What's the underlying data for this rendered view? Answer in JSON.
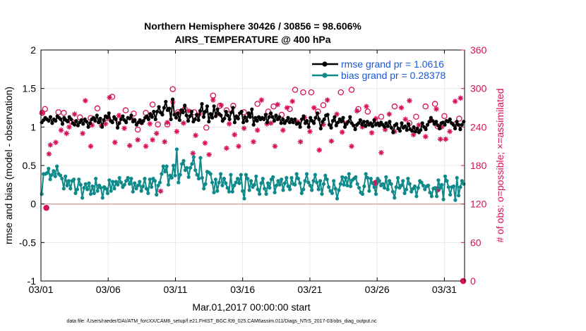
{
  "chart_data": {
    "type": "line",
    "title_line1": "Northern Hemisphere 30426 / 30856 = 98.606%",
    "title_line2": "AIRS_TEMPERATURE @ 400 hPa",
    "xlabel": "Mar.01,2017 00:00:00 start",
    "ylabel": "rmse and bias (model - observation)",
    "y2label": "# of obs: o=possible; ×=assimilated",
    "footnote": "data file: /Users/raeder/DAI/ATM_forcXX/CAM6_setup/f.e21.FHIST_BGC.f09_025.CAM6assim.011/Diags_NTrS_2017-03/obs_diag_output.nc",
    "xlim": [
      0,
      31.5
    ],
    "ylim": [
      -1,
      2
    ],
    "y2lim": [
      0,
      360
    ],
    "xticks": [
      0,
      5,
      10,
      15,
      20,
      25,
      30
    ],
    "xticklabels": [
      "03/01",
      "03/06",
      "03/11",
      "03/16",
      "03/21",
      "03/26",
      "03/31"
    ],
    "yticks": [
      -1,
      -0.5,
      0,
      0.5,
      1,
      1.5,
      2
    ],
    "yticklabels": [
      "-1",
      "-0.5",
      "0",
      "0.5",
      "1",
      "1.5",
      "2"
    ],
    "y2ticks": [
      0,
      60,
      120,
      180,
      240,
      300,
      360
    ],
    "y2ticklabels": [
      "0",
      "60",
      "120",
      "180",
      "240",
      "300",
      "360"
    ],
    "colors": {
      "rmse": "#000000",
      "bias": "#0f8a8a",
      "obs": "#d6105b",
      "zero": "#d9a0a0",
      "legend_text": "#1a57d6"
    },
    "series": [
      {
        "name": "rmse grand pr = 1.0616",
        "key": "rmse",
        "values": [
          1.06,
          1.09,
          1.12,
          1.1,
          1.08,
          1.13,
          1.05,
          1.1,
          1.08,
          1.14,
          1.12,
          1.1,
          1.04,
          1.12,
          1.09,
          1.07,
          1.13,
          1.1,
          1.05,
          1.03,
          1.08,
          1.02,
          1.06,
          1.09,
          1.04,
          1.1,
          1.07,
          1.0,
          1.05,
          1.1,
          1.12,
          1.08,
          1.15,
          1.06,
          1.11,
          1.0,
          1.09,
          1.14,
          1.12,
          1.18,
          1.08,
          1.06,
          1.13,
          1.1,
          0.99,
          1.05,
          1.1,
          1.14,
          1.09,
          1.06,
          1.12,
          1.11,
          1.15,
          1.07,
          1.09,
          1.03,
          1.06,
          1.09,
          1.05,
          1.08,
          1.12,
          1.14,
          1.1,
          1.17,
          1.13,
          1.2,
          1.1,
          1.2,
          1.26,
          1.19,
          1.16,
          1.25,
          1.33,
          1.22,
          1.24,
          1.1,
          1.36,
          1.16,
          1.12,
          1.18,
          1.09,
          1.22,
          1.19,
          1.28,
          1.15,
          1.08,
          1.14,
          1.2,
          1.07,
          1.1,
          1.16,
          1.09,
          1.21,
          1.3,
          1.13,
          1.2,
          1.27,
          1.07,
          1.17,
          1.12,
          1.27,
          1.14,
          1.23,
          1.17,
          1.15,
          1.08,
          1.11,
          1.2,
          1.15,
          1.1,
          1.19,
          1.25,
          1.06,
          1.14,
          1.11,
          1.18,
          1.2,
          1.06,
          1.13,
          1.08,
          1.18,
          1.13,
          1.23,
          1.03,
          1.12,
          1.08,
          1.13,
          1.1,
          1.12,
          1.1,
          1.16,
          1.06,
          1.13,
          1.18,
          1.13,
          1.08,
          1.15,
          1.1,
          1.13,
          1.05,
          1.1,
          1.05,
          1.08,
          1.12,
          1.06,
          1.1,
          1.06,
          1.1,
          1.04,
          1.05,
          1.0,
          1.1,
          1.14,
          1.05,
          1.08,
          1.0,
          1.12,
          1.08,
          1.05,
          1.12,
          1.18,
          1.1,
          0.98,
          1.07,
          1.1,
          1.15,
          1.16,
          1.03,
          0.99,
          1.08,
          1.13,
          1.02,
          1.06,
          1.1,
          1.07,
          1.12,
          1.0,
          1.04,
          1.07,
          1.13,
          1.05,
          1.02,
          0.97,
          1.03,
          1.05,
          1.09,
          1.03,
          1.07,
          1.01,
          1.07,
          1.03,
          1.05,
          1.01,
          1.09,
          1.03,
          1.05,
          1.02,
          1.06,
          1.03,
          1.0,
          1.05,
          1.01,
          1.07,
          0.99,
          0.93,
          1.02,
          1.04,
          0.98,
          0.95,
          1.05,
          0.99,
          1.01,
          0.96,
          1.04,
          0.97,
          0.95,
          1.0,
          0.94,
          0.98,
          0.93,
          0.96,
          1.05,
          1.0,
          0.97,
          1.03,
          1.07,
          1.12,
          1.08,
          1.04,
          1.07,
          1.02,
          0.98,
          1.05,
          1.06,
          1.03,
          1.08,
          1.07,
          1.1,
          1.05,
          1.03,
          0.98,
          1.07,
          1.03,
          0.97,
          1.03,
          1.07
        ]
      },
      {
        "name": "bias grand pr = 0.28378",
        "key": "bias",
        "values": [
          0.13,
          0.39,
          0.39,
          0.4,
          0.46,
          0.32,
          0.38,
          0.43,
          0.36,
          0.49,
          0.39,
          0.37,
          0.33,
          0.2,
          0.36,
          0.24,
          0.3,
          0.2,
          0.3,
          0.32,
          0.14,
          0.19,
          0.32,
          0.25,
          0.08,
          0.21,
          0.26,
          0.19,
          0.27,
          0.13,
          0.23,
          0.14,
          0.33,
          0.17,
          0.24,
          0.21,
          0.08,
          0.22,
          0.2,
          0.14,
          0.31,
          0.17,
          0.29,
          0.2,
          0.29,
          0.25,
          0.34,
          0.28,
          0.22,
          0.25,
          0.3,
          0.34,
          0.26,
          0.33,
          0.16,
          0.27,
          0.2,
          0.24,
          0.29,
          0.17,
          0.23,
          0.33,
          0.2,
          0.14,
          0.32,
          0.22,
          0.33,
          0.3,
          0.12,
          0.24,
          0.28,
          0.39,
          0.49,
          0.42,
          0.49,
          0.25,
          0.37,
          0.34,
          0.5,
          0.37,
          0.71,
          0.28,
          0.38,
          0.52,
          0.56,
          0.44,
          0.47,
          0.35,
          0.47,
          0.52,
          0.61,
          0.44,
          0.38,
          0.33,
          0.6,
          0.34,
          0.2,
          0.26,
          0.42,
          0.41,
          0.39,
          0.28,
          0.15,
          0.32,
          0.17,
          0.28,
          0.39,
          0.24,
          0.33,
          0.27,
          0.21,
          0.16,
          0.38,
          0.16,
          0.24,
          0.28,
          0.33,
          0.27,
          0.38,
          0.17,
          0.07,
          0.38,
          0.33,
          0.18,
          0.3,
          0.22,
          0.25,
          0.36,
          0.19,
          0.13,
          0.27,
          0.33,
          0.2,
          0.13,
          0.27,
          0.21,
          0.32,
          0.35,
          0.15,
          0.24,
          0.3,
          0.25,
          0.32,
          0.18,
          0.27,
          0.34,
          0.23,
          0.19,
          0.34,
          0.26,
          0.25,
          0.39,
          0.33,
          0.27,
          0.14,
          0.19,
          0.3,
          0.39,
          0.28,
          0.24,
          0.18,
          0.3,
          0.38,
          0.28,
          0.19,
          0.3,
          0.13,
          0.26,
          0.37,
          0.32,
          0.22,
          0.17,
          0.14,
          0.3,
          0.2,
          0.07,
          0.18,
          0.26,
          0.35,
          0.25,
          0.34,
          0.24,
          0.39,
          0.23,
          0.31,
          0.33,
          0.35,
          0.26,
          0.21,
          0.15,
          0.13,
          0.23,
          0.39,
          0.34,
          0.17,
          0.33,
          0.27,
          0.22,
          0.13,
          0.33,
          0.3,
          0.24,
          0.26,
          0.21,
          0.35,
          0.19,
          0.3,
          0.26,
          0.16,
          0.08,
          0.22,
          0.34,
          0.21,
          0.24,
          0.3,
          0.14,
          0.19,
          0.33,
          0.26,
          0.16,
          0.2,
          0.23,
          0.1,
          0.21,
          0.3,
          0.28,
          0.24,
          0.19,
          0.23,
          0.24,
          0.15,
          0.1,
          0.2,
          0.21,
          0.1,
          0.31,
          0.21,
          0.25,
          0.06,
          0.36,
          0.3,
          0.22,
          0.12,
          0.22,
          0.23,
          0.05,
          0.34,
          0.11,
          0.22,
          0.3,
          0.26
        ]
      }
    ],
    "obs_possible": [
      [
        0.1,
        262
      ],
      [
        0.3,
        268
      ],
      [
        1.3,
        263
      ],
      [
        1.7,
        262
      ],
      [
        2.3,
        248
      ],
      [
        2.9,
        255
      ],
      [
        3.7,
        254
      ],
      [
        4.2,
        269
      ],
      [
        4.9,
        254
      ],
      [
        5.3,
        287
      ],
      [
        5.8,
        252
      ],
      [
        6.3,
        266
      ],
      [
        6.9,
        261
      ],
      [
        7.2,
        236
      ],
      [
        7.8,
        262
      ],
      [
        8.3,
        275
      ],
      [
        8.7,
        244
      ],
      [
        9.4,
        244
      ],
      [
        9.8,
        299
      ],
      [
        10.2,
        263
      ],
      [
        10.7,
        268
      ],
      [
        11.4,
        263
      ],
      [
        12.3,
        239
      ],
      [
        12.8,
        289
      ],
      [
        13.3,
        273
      ],
      [
        13.8,
        266
      ],
      [
        14.3,
        273
      ],
      [
        15.1,
        263
      ],
      [
        16.1,
        276
      ],
      [
        16.9,
        264
      ],
      [
        17.3,
        272
      ],
      [
        17.9,
        259
      ],
      [
        18.5,
        268
      ],
      [
        18.9,
        298
      ],
      [
        19.5,
        294
      ],
      [
        20.1,
        294
      ],
      [
        20.6,
        264
      ],
      [
        21.0,
        274
      ],
      [
        22.3,
        294
      ],
      [
        23.1,
        298
      ],
      [
        23.6,
        268
      ],
      [
        24.3,
        264
      ],
      [
        25.3,
        256
      ],
      [
        26.3,
        272
      ],
      [
        27.4,
        246
      ],
      [
        27.9,
        256
      ],
      [
        28.6,
        272
      ],
      [
        29.3,
        276
      ],
      [
        29.5,
        241
      ],
      [
        30.0,
        257
      ],
      [
        30.8,
        244
      ],
      [
        31.1,
        253
      ]
    ],
    "obs_assimilated": [
      [
        0.1,
        262
      ],
      [
        0.6,
        198
      ],
      [
        0.7,
        212
      ],
      [
        1.1,
        216
      ],
      [
        1.5,
        235
      ],
      [
        1.9,
        230
      ],
      [
        2.1,
        240
      ],
      [
        2.5,
        260
      ],
      [
        3.1,
        230
      ],
      [
        3.3,
        281
      ],
      [
        3.7,
        210
      ],
      [
        3.8,
        243
      ],
      [
        4.5,
        242
      ],
      [
        4.8,
        245
      ],
      [
        5.1,
        286
      ],
      [
        5.5,
        216
      ],
      [
        5.8,
        258
      ],
      [
        6.2,
        238
      ],
      [
        6.6,
        211
      ],
      [
        6.9,
        251
      ],
      [
        7.2,
        220
      ],
      [
        7.5,
        247
      ],
      [
        7.8,
        210
      ],
      [
        8.1,
        245
      ],
      [
        8.3,
        220
      ],
      [
        8.6,
        230
      ],
      [
        8.9,
        140
      ],
      [
        9.2,
        217
      ],
      [
        9.4,
        247
      ],
      [
        9.8,
        279
      ],
      [
        10.1,
        233
      ],
      [
        10.4,
        264
      ],
      [
        10.6,
        246
      ],
      [
        11.0,
        265
      ],
      [
        11.3,
        199
      ],
      [
        11.5,
        227
      ],
      [
        11.8,
        260
      ],
      [
        12.2,
        215
      ],
      [
        12.5,
        197
      ],
      [
        12.8,
        282
      ],
      [
        13.1,
        260
      ],
      [
        13.4,
        274
      ],
      [
        13.8,
        207
      ],
      [
        14.0,
        245
      ],
      [
        14.4,
        228
      ],
      [
        14.7,
        210
      ],
      [
        15.1,
        238
      ],
      [
        15.5,
        260
      ],
      [
        15.8,
        217
      ],
      [
        16.1,
        235
      ],
      [
        16.4,
        282
      ],
      [
        16.8,
        245
      ],
      [
        17.1,
        246
      ],
      [
        17.4,
        210
      ],
      [
        17.6,
        275
      ],
      [
        18.0,
        235
      ],
      [
        18.3,
        270
      ],
      [
        18.7,
        280
      ],
      [
        19.1,
        248
      ],
      [
        19.3,
        217
      ],
      [
        19.6,
        255
      ],
      [
        20.0,
        233
      ],
      [
        20.3,
        270
      ],
      [
        20.7,
        204
      ],
      [
        21.0,
        244
      ],
      [
        21.3,
        282
      ],
      [
        21.6,
        218
      ],
      [
        22.0,
        260
      ],
      [
        22.4,
        232
      ],
      [
        22.7,
        246
      ],
      [
        23.1,
        210
      ],
      [
        23.5,
        265
      ],
      [
        23.9,
        240
      ],
      [
        24.2,
        272
      ],
      [
        24.6,
        231
      ],
      [
        24.9,
        253
      ],
      [
        25.3,
        200
      ],
      [
        25.6,
        236
      ],
      [
        25.9,
        260
      ],
      [
        26.3,
        233
      ],
      [
        26.8,
        270
      ],
      [
        27.1,
        252
      ],
      [
        27.4,
        281
      ],
      [
        27.7,
        228
      ],
      [
        28.1,
        243
      ],
      [
        28.6,
        225
      ],
      [
        29.0,
        250
      ],
      [
        29.4,
        268
      ],
      [
        29.7,
        221
      ],
      [
        29.8,
        240
      ],
      [
        30.1,
        221
      ],
      [
        30.4,
        233
      ],
      [
        30.8,
        280
      ],
      [
        31.2,
        285
      ]
    ],
    "obs_special": [
      [
        0.4,
        114
      ],
      [
        24.9,
        153
      ],
      [
        29.5,
        143
      ],
      [
        31.4,
        0
      ]
    ]
  }
}
